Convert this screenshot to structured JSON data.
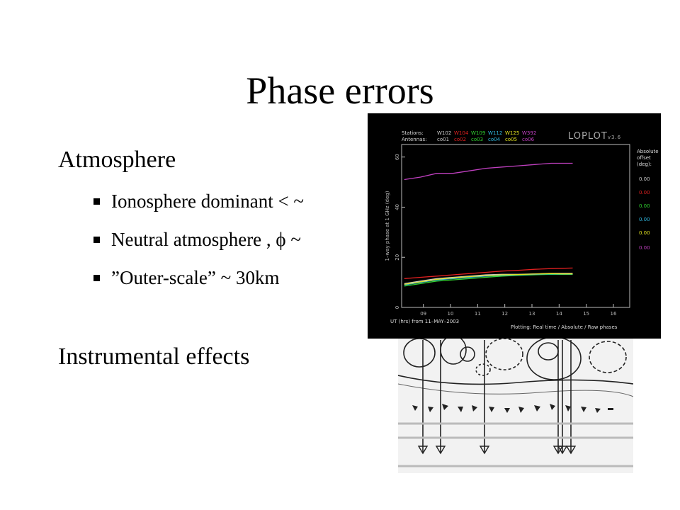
{
  "slide": {
    "title": "Phase errors",
    "atmosphere_heading": "Atmosphere",
    "bullets": [
      "Ionosphere dominant < ~",
      "Neutral atmosphere , ϕ ~",
      "”Outer-scale” ~ 30km"
    ],
    "instrumental_heading": "Instrumental effects"
  },
  "plot_panel": {
    "brand": "LOPLOT",
    "version": "v3.6",
    "stations_label": "Stations:",
    "antennas_label": "Antennas:",
    "stations": [
      {
        "station": "W102",
        "antenna": "co01",
        "color": "#c8c8c8"
      },
      {
        "station": "W104",
        "antenna": "co02",
        "color": "#e02020"
      },
      {
        "station": "W109",
        "antenna": "co03",
        "color": "#30d030"
      },
      {
        "station": "W112",
        "antenna": "co04",
        "color": "#30b8e0"
      },
      {
        "station": "W125",
        "antenna": "co05",
        "color": "#e0e020"
      },
      {
        "station": "W392",
        "antenna": "co06",
        "color": "#c040c0"
      }
    ],
    "offset_title": [
      "Absolute",
      "offset",
      "(deg):"
    ],
    "offsets": [
      "0.00",
      "0.00",
      "0.00",
      "0.00",
      "0.00",
      "0.00"
    ],
    "footer_left": "UT (hrs) from 11–MAY–2003",
    "footer_right": "Plotting: Real time / Absolute / Raw phases"
  },
  "chart_data": {
    "type": "line",
    "xlabel": "UT (hrs) from 11–MAY–2003",
    "ylabel": "1–way phase at 1 GHz (deg)",
    "xlim": [
      8.2,
      16.6
    ],
    "ylim": [
      0,
      65
    ],
    "xticks": [
      "09",
      "10",
      "11",
      "12",
      "13",
      "14",
      "15",
      "16"
    ],
    "yticks": [
      "0",
      "20",
      "40",
      "60"
    ],
    "grid": false,
    "legend": "top",
    "x": [
      8.3,
      8.9,
      9.5,
      10.1,
      10.7,
      11.3,
      11.9,
      12.5,
      13.1,
      13.7,
      14.1,
      14.5
    ],
    "series": [
      {
        "name": "W392",
        "color": "#c040c0",
        "values": [
          51,
          52,
          53.5,
          53.5,
          54.5,
          55.5,
          56,
          56.5,
          57,
          57.5,
          57.5,
          57.5
        ]
      },
      {
        "name": "W104",
        "color": "#e02020",
        "values": [
          11.5,
          12,
          12.5,
          13,
          13.5,
          14,
          14.5,
          14.8,
          15.2,
          15.5,
          15.6,
          15.7
        ]
      },
      {
        "name": "W102",
        "color": "#c8c8c8",
        "values": [
          9.5,
          10.5,
          11.5,
          12,
          12.5,
          13,
          13.2,
          13.2,
          13.4,
          13.6,
          13.6,
          13.6
        ]
      },
      {
        "name": "W109",
        "color": "#30d030",
        "values": [
          8.5,
          9.5,
          10.5,
          11,
          11.5,
          12,
          12.5,
          12.8,
          13,
          13.2,
          13.2,
          13.2
        ]
      },
      {
        "name": "W112",
        "color": "#30b8e0",
        "values": [
          9,
          10,
          11,
          11.5,
          12,
          12.5,
          12.8,
          13,
          13.2,
          13.4,
          13.3,
          13.3
        ]
      },
      {
        "name": "W125",
        "color": "#e0e020",
        "values": [
          9.2,
          10.2,
          11.2,
          11.8,
          12.3,
          12.7,
          13,
          13.1,
          13.3,
          13.5,
          13.4,
          13.4
        ]
      }
    ]
  }
}
